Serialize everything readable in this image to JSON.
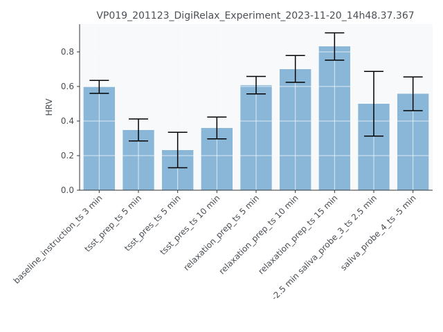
{
  "chart_data": {
    "type": "bar",
    "title": "VP019_201123_DigiRelax_Experiment_2023-11-20_14h48.37.367",
    "xlabel": "",
    "ylabel": "HRV",
    "ylim": [
      0,
      0.96
    ],
    "yticks": [
      "0.0",
      "0.2",
      "0.4",
      "0.6",
      "0.8"
    ],
    "grid": true,
    "categories": [
      "baseline_instruction_ts 3 min",
      "tsst_prep_ts 5 min",
      "tsst_pres_ts 5 min",
      "tsst_pres_ts 10 min",
      "relaxation_prep_ts 5 min",
      "relaxation_prep_ts 10 min",
      "relaxation_prep_ts 15 min",
      "-2.5 min saliva_probe_3_ts 2.5 min",
      "saliva_probe_4_ts -5 min"
    ],
    "values": [
      0.597,
      0.348,
      0.232,
      0.36,
      0.607,
      0.7,
      0.832,
      0.5,
      0.558
    ],
    "error_low": [
      0.56,
      0.285,
      0.13,
      0.297,
      0.557,
      0.624,
      0.752,
      0.313,
      0.46
    ],
    "error_high": [
      0.635,
      0.412,
      0.335,
      0.423,
      0.658,
      0.779,
      0.91,
      0.687,
      0.655
    ],
    "colors": {
      "bar": "#8ab7d8",
      "error_bar": "#000000",
      "grid": "#e8ebef",
      "plot_bg": "#f7f9fb",
      "axis": "#333333",
      "text": "#4a4f55"
    }
  }
}
